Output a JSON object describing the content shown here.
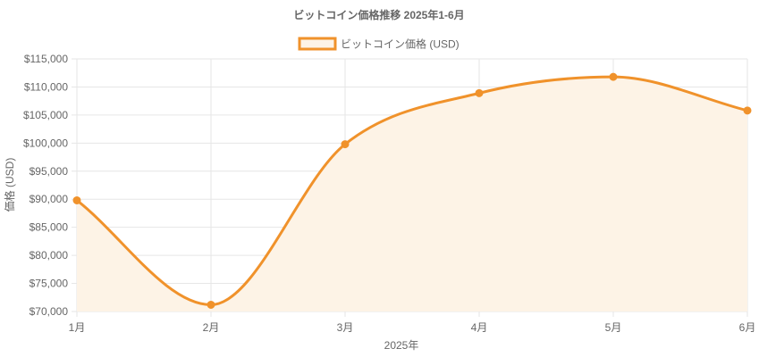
{
  "chart_data": {
    "type": "area",
    "title": "ビットコイン価格推移 2025年1-6月",
    "categories": [
      "1月",
      "2月",
      "3月",
      "4月",
      "5月",
      "6月"
    ],
    "series": [
      {
        "name": "ビットコイン価格 (USD)",
        "values": [
          89800,
          71200,
          99800,
          108900,
          111800,
          105800
        ]
      }
    ],
    "xlabel": "2025年",
    "ylabel": "価格 (USD)",
    "ylim": [
      70000,
      115000
    ],
    "yticks": [
      "$115,000",
      "$110,000",
      "$105,000",
      "$100,000",
      "$95,000",
      "$90,000",
      "$85,000",
      "$80,000",
      "$75,000",
      "$70,000"
    ],
    "grid": true,
    "legend_position": "top-center",
    "colors": {
      "line": "#f0922b",
      "fill": "#fdf3e6",
      "grid": "#e6e6e6",
      "text": "#666666",
      "title": "#666666"
    }
  }
}
